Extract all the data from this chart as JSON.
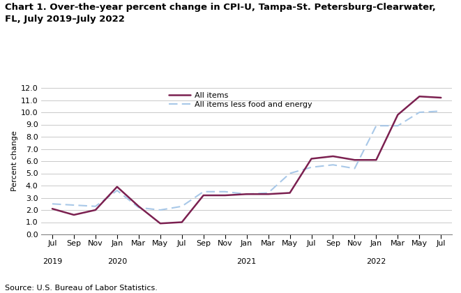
{
  "title": "Chart 1. Over-the-year percent change in CPI-U, Tampa-St. Petersburg-Clearwater,\nFL, July 2019–July 2022",
  "ylabel": "Percent change",
  "source": "Source: U.S. Bureau of Labor Statistics.",
  "ylim": [
    0.0,
    12.0
  ],
  "yticks": [
    0.0,
    1.0,
    2.0,
    3.0,
    4.0,
    5.0,
    6.0,
    7.0,
    8.0,
    9.0,
    10.0,
    11.0,
    12.0
  ],
  "month_labels": [
    "Jul",
    "Sep",
    "Nov",
    "Jan",
    "Mar",
    "May",
    "Jul",
    "Sep",
    "Nov",
    "Jan",
    "Mar",
    "May",
    "Jul",
    "Sep",
    "Nov",
    "Jan",
    "Mar",
    "May",
    "Jul"
  ],
  "year_label_indices": [
    0,
    3,
    9,
    15
  ],
  "year_labels": [
    "2019",
    "2020",
    "2021",
    "2022"
  ],
  "all_items_y": [
    2.1,
    1.6,
    2.0,
    3.9,
    2.3,
    0.9,
    1.0,
    3.2,
    3.2,
    3.3,
    3.3,
    3.4,
    6.2,
    6.4,
    6.1,
    6.1,
    9.8,
    11.3,
    11.2
  ],
  "all_less_y": [
    2.5,
    2.4,
    2.3,
    3.6,
    2.2,
    2.0,
    2.3,
    3.5,
    3.5,
    3.3,
    3.4,
    5.0,
    5.5,
    5.7,
    5.4,
    8.9,
    8.9,
    10.0,
    10.1
  ],
  "all_items_color": "#7b2050",
  "all_items_less_color": "#a8c8e8",
  "legend_all_items": "All items",
  "legend_all_items_less": "All items less food and energy",
  "title_fontsize": 9.5,
  "axis_fontsize": 8,
  "source_fontsize": 8
}
